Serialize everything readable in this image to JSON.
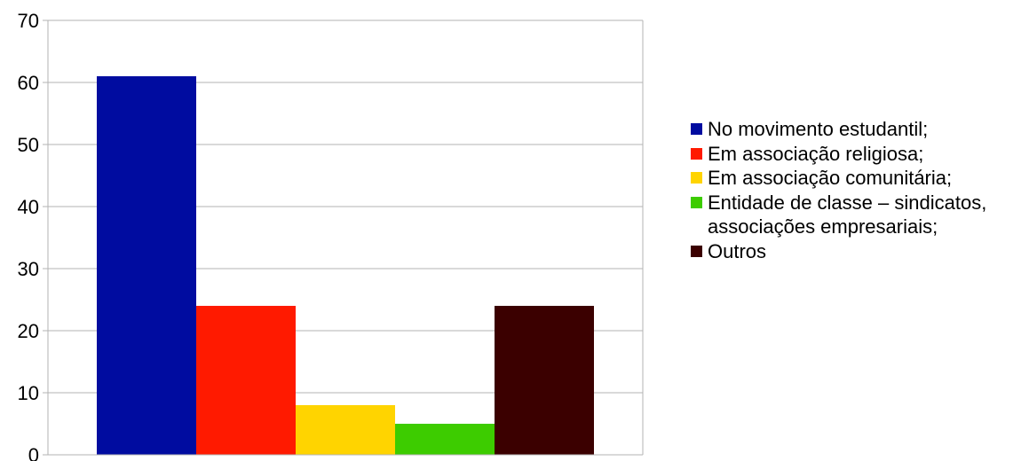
{
  "chart_data": {
    "type": "bar",
    "categories": [
      "No movimento estudantil;",
      "Em associação religiosa;",
      "Em associação comunitária;",
      "Entidade de classe – sindicatos, associações empresariais;",
      "Outros"
    ],
    "values": [
      61,
      24,
      8,
      5,
      24
    ],
    "colors": [
      "#000ca0",
      "#ff1a00",
      "#ffd400",
      "#3dcc00",
      "#3b0000"
    ],
    "ylim": [
      0,
      70
    ],
    "yticks": [
      "0",
      "10",
      "20",
      "30",
      "40",
      "50",
      "60",
      "70"
    ],
    "grid": true,
    "legend": {
      "placement": "right",
      "entries": [
        {
          "label": "No movimento estudantil;",
          "color": "#000ca0"
        },
        {
          "label": "Em associação religiosa;",
          "color": "#ff1a00"
        },
        {
          "label": "Em associação comunitária;",
          "color": "#ffd400"
        },
        {
          "label": "Entidade de classe – sindicatos, associações empresariais;",
          "color": "#3dcc00"
        },
        {
          "label": "Outros",
          "color": "#3b0000"
        }
      ]
    },
    "gridline_color": "#b3b3b3"
  }
}
